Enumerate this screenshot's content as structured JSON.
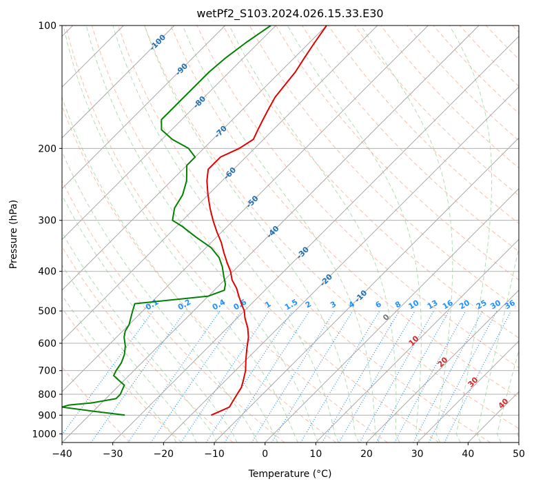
{
  "chart_data": {
    "type": "line",
    "title": "wetPf2_S103.2024.026.15.33.E30",
    "xlabel": "Temperature (°C)",
    "ylabel": "Pressure (hPa)",
    "xlim": [
      -40,
      50
    ],
    "ylim": [
      1050,
      100
    ],
    "y_scale": "log",
    "skew_deg": 45,
    "grid": true,
    "x_ticks": [
      "−40",
      "−30",
      "−20",
      "−10",
      "0",
      "10",
      "20",
      "30",
      "40",
      "50"
    ],
    "y_ticks": [
      "100",
      "200",
      "300",
      "400",
      "500",
      "600",
      "700",
      "800",
      "900",
      "1000"
    ],
    "series": [
      {
        "color": "#e00000",
        "points": [
          [
            900,
            -16
          ],
          [
            880,
            -15
          ],
          [
            860,
            -14
          ],
          [
            830,
            -14.5
          ],
          [
            800,
            -15
          ],
          [
            770,
            -15.5
          ],
          [
            740,
            -16.5
          ],
          [
            700,
            -18
          ],
          [
            660,
            -20
          ],
          [
            620,
            -22
          ],
          [
            580,
            -24
          ],
          [
            550,
            -26
          ],
          [
            520,
            -28.5
          ],
          [
            500,
            -30
          ],
          [
            480,
            -32
          ],
          [
            460,
            -34
          ],
          [
            440,
            -36
          ],
          [
            420,
            -38.5
          ],
          [
            400,
            -40.5
          ],
          [
            380,
            -43
          ],
          [
            360,
            -45.5
          ],
          [
            340,
            -48
          ],
          [
            320,
            -51
          ],
          [
            300,
            -54
          ],
          [
            280,
            -57
          ],
          [
            260,
            -60
          ],
          [
            240,
            -63
          ],
          [
            225,
            -65
          ],
          [
            210,
            -65
          ],
          [
            200,
            -63
          ],
          [
            190,
            -62
          ],
          [
            180,
            -63
          ],
          [
            170,
            -64
          ],
          [
            160,
            -65
          ],
          [
            150,
            -66
          ],
          [
            140,
            -66.5
          ],
          [
            130,
            -67
          ],
          [
            120,
            -68
          ],
          [
            110,
            -69
          ],
          [
            100,
            -70
          ]
        ]
      },
      {
        "color": "#008000",
        "points": [
          [
            900,
            -33
          ],
          [
            880,
            -40
          ],
          [
            860,
            -47
          ],
          [
            850,
            -46
          ],
          [
            840,
            -42
          ],
          [
            820,
            -38
          ],
          [
            800,
            -38
          ],
          [
            780,
            -38.5
          ],
          [
            760,
            -39
          ],
          [
            740,
            -41
          ],
          [
            720,
            -43
          ],
          [
            700,
            -43.5
          ],
          [
            670,
            -44
          ],
          [
            640,
            -45
          ],
          [
            610,
            -46.5
          ],
          [
            580,
            -48.5
          ],
          [
            560,
            -49.5
          ],
          [
            540,
            -50
          ],
          [
            520,
            -51
          ],
          [
            500,
            -52
          ],
          [
            480,
            -53
          ],
          [
            460,
            -40
          ],
          [
            445,
            -38
          ],
          [
            430,
            -39
          ],
          [
            410,
            -41
          ],
          [
            390,
            -43
          ],
          [
            370,
            -45.5
          ],
          [
            350,
            -49
          ],
          [
            330,
            -54
          ],
          [
            310,
            -59
          ],
          [
            300,
            -62
          ],
          [
            280,
            -64
          ],
          [
            260,
            -65
          ],
          [
            240,
            -67
          ],
          [
            220,
            -70
          ],
          [
            210,
            -70
          ],
          [
            200,
            -73
          ],
          [
            190,
            -78
          ],
          [
            180,
            -82
          ],
          [
            170,
            -84
          ],
          [
            160,
            -84
          ],
          [
            150,
            -84
          ],
          [
            140,
            -84
          ],
          [
            130,
            -84
          ],
          [
            120,
            -83.5
          ],
          [
            110,
            -82.5
          ],
          [
            100,
            -81
          ]
        ]
      }
    ],
    "isotherm_labels": [
      "-100",
      "-90",
      "-80",
      "-70",
      "-60",
      "-50",
      "-40",
      "-30",
      "-20",
      "-10"
    ],
    "mixing_ratio_labels": [
      "0.1",
      "0.2",
      "0.4",
      "0.6",
      "1",
      "1.5",
      "2",
      "3",
      "4",
      "6",
      "8",
      "10",
      "13",
      "16",
      "20",
      "25",
      "30",
      "36"
    ],
    "moist_adiabat_labels": [
      "0",
      "10",
      "20",
      "30",
      "40"
    ],
    "colors": {
      "temperature": "#e00000",
      "dewpoint": "#008000",
      "isotherm_text": "#1f6fb2",
      "mixing_text": "#1e90ff",
      "moist_text": "#d62728",
      "dry_adiabat": "#f4a582",
      "moist_adiabat": "#9fd39f",
      "mixing_line": "#1e88e5"
    }
  }
}
